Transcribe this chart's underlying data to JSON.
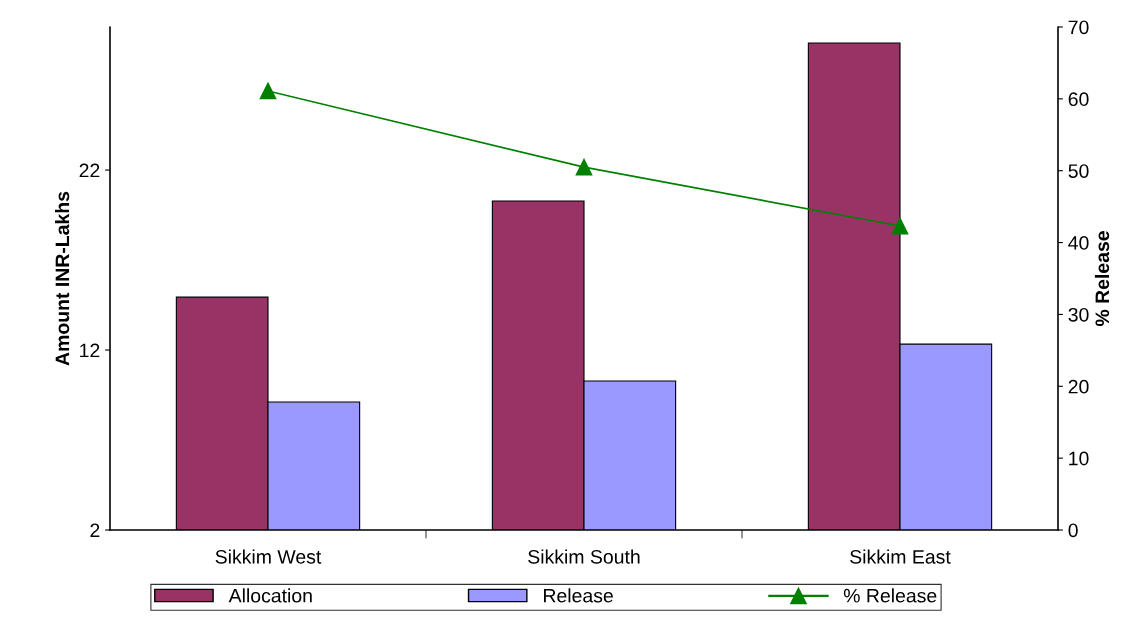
{
  "chart_data": {
    "type": "bar",
    "categories": [
      "Sikkim West",
      "Sikkim South",
      "Sikkim East"
    ],
    "ylabel": "Amount INR-Lakhs",
    "y2label": "% Release",
    "ylim": [
      2,
      29.95
    ],
    "yticks": [
      2,
      12,
      22
    ],
    "y2lim": [
      0,
      70
    ],
    "y2ticks": [
      0,
      10,
      20,
      30,
      40,
      50,
      60,
      70
    ],
    "grid": false,
    "legend": "bottom",
    "marker": "triangle",
    "line_style": "solid",
    "series": [
      {
        "name": "Allocation",
        "color": "#993366",
        "values": [
          14.94,
          20.28,
          29.06
        ]
      },
      {
        "name": "Release",
        "color": "#9999ff",
        "values": [
          9.11,
          10.28,
          12.33
        ]
      },
      {
        "name": "% Release",
        "type": "line",
        "axis": "y2",
        "color": "#008000",
        "values": [
          61.1,
          50.5,
          42.3
        ]
      }
    ]
  }
}
